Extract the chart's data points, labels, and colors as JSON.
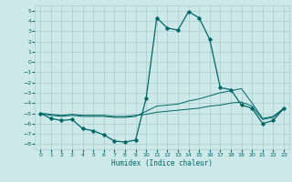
{
  "xlabel": "Humidex (Indice chaleur)",
  "background_color": "#cce8e8",
  "grid_color": "#aacccc",
  "line_color": "#006666",
  "xlim": [
    -0.5,
    23.5
  ],
  "ylim": [
    -8.5,
    5.5
  ],
  "xticks": [
    0,
    1,
    2,
    3,
    4,
    5,
    6,
    7,
    8,
    9,
    10,
    11,
    12,
    13,
    14,
    15,
    16,
    17,
    18,
    19,
    20,
    21,
    22,
    23
  ],
  "yticks": [
    5,
    4,
    3,
    2,
    1,
    0,
    -1,
    -2,
    -3,
    -4,
    -5,
    -6,
    -7,
    -8
  ],
  "series": [
    {
      "x": [
        0,
        1,
        2,
        3,
        4,
        5,
        6,
        7,
        8,
        9,
        10,
        11,
        12,
        13,
        14,
        15,
        16,
        17,
        18,
        19,
        20,
        21,
        22,
        23
      ],
      "y": [
        -5.0,
        -5.5,
        -5.7,
        -5.6,
        -6.5,
        -6.7,
        -7.1,
        -7.7,
        -7.8,
        -7.6,
        -3.5,
        4.3,
        3.3,
        3.1,
        4.9,
        4.3,
        2.2,
        -2.5,
        -2.7,
        -4.2,
        -4.5,
        -6.0,
        -5.7,
        -4.5
      ]
    },
    {
      "x": [
        0,
        1,
        2,
        3,
        4,
        5,
        6,
        7,
        8,
        9,
        10,
        11,
        12,
        13,
        14,
        15,
        16,
        17,
        18,
        19,
        20,
        21,
        22,
        23
      ],
      "y": [
        -5.0,
        -5.2,
        -5.3,
        -5.2,
        -5.3,
        -5.3,
        -5.3,
        -5.4,
        -5.4,
        -5.3,
        -4.8,
        -4.3,
        -4.2,
        -4.1,
        -3.8,
        -3.6,
        -3.3,
        -3.0,
        -2.8,
        -2.6,
        -4.0,
        -5.5,
        -5.3,
        -4.5
      ]
    },
    {
      "x": [
        0,
        1,
        2,
        3,
        4,
        5,
        6,
        7,
        8,
        9,
        10,
        11,
        12,
        13,
        14,
        15,
        16,
        17,
        18,
        19,
        20,
        21,
        22,
        23
      ],
      "y": [
        -5.0,
        -5.1,
        -5.2,
        -5.1,
        -5.2,
        -5.2,
        -5.2,
        -5.3,
        -5.3,
        -5.2,
        -5.1,
        -4.9,
        -4.8,
        -4.7,
        -4.6,
        -4.5,
        -4.3,
        -4.2,
        -4.0,
        -3.9,
        -4.3,
        -5.6,
        -5.4,
        -4.6
      ]
    }
  ]
}
